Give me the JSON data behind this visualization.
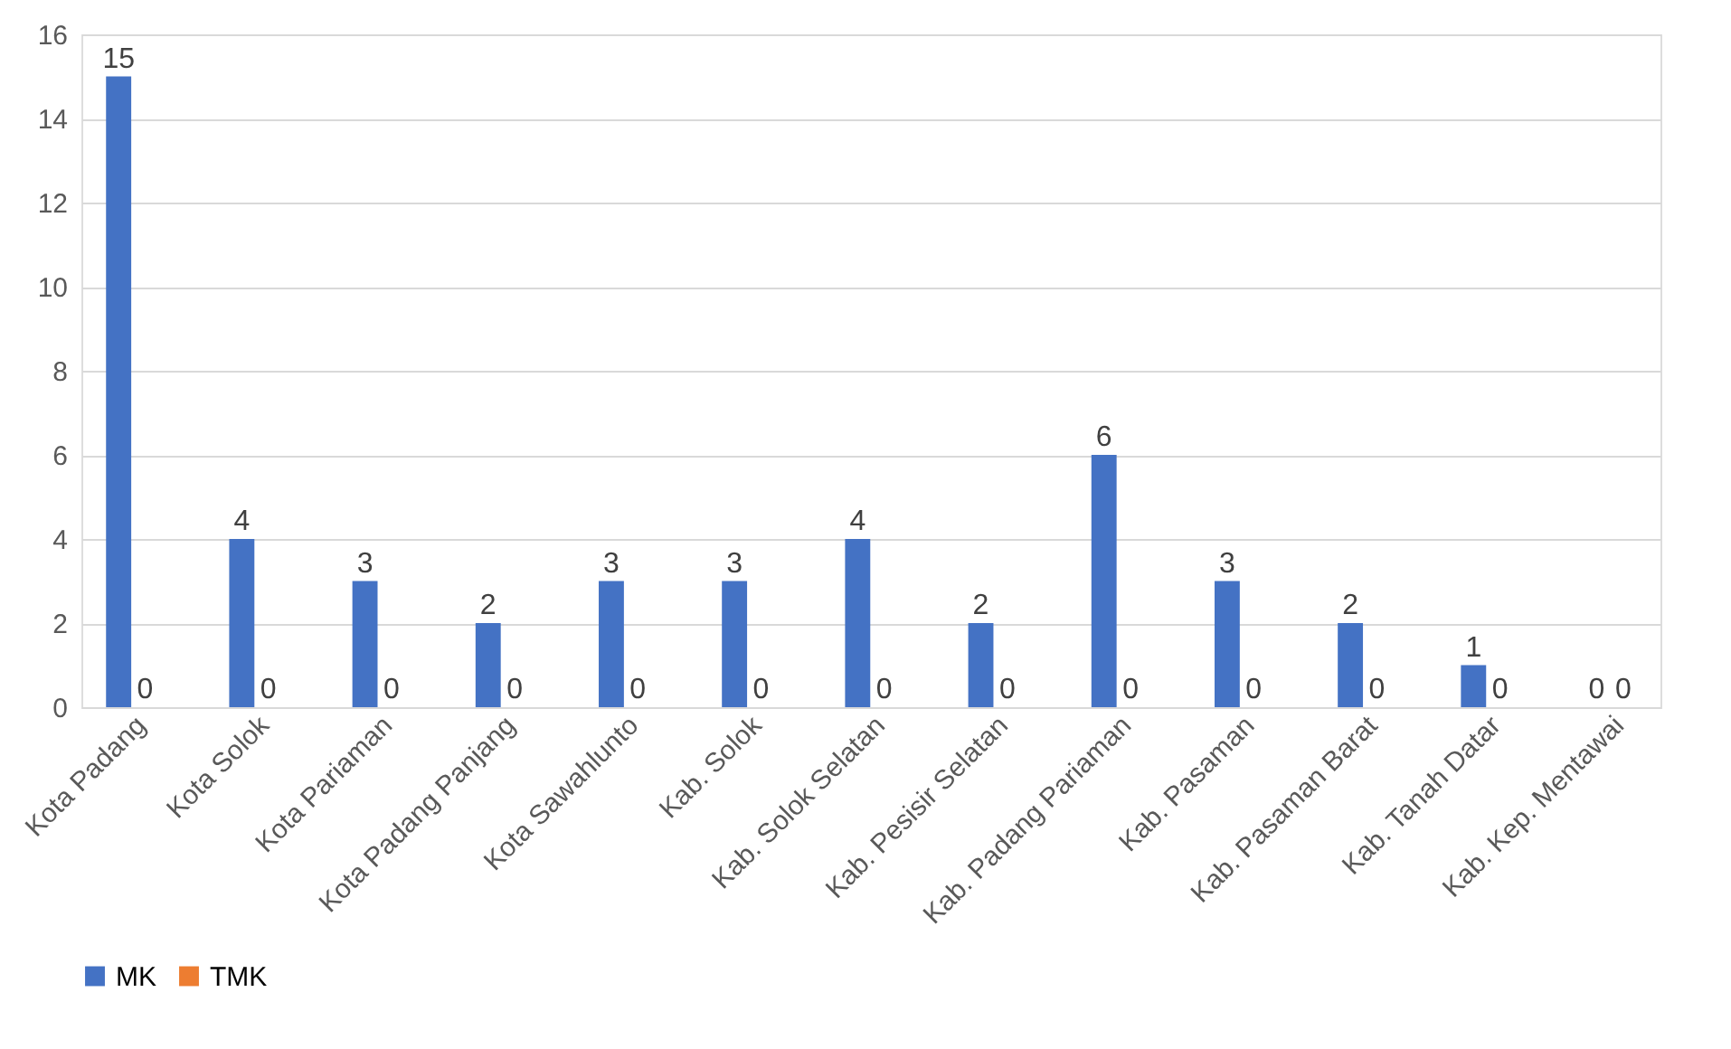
{
  "chart_data": {
    "type": "bar",
    "categories": [
      "Kota Padang",
      "Kota Solok",
      "Kota Pariaman",
      "Kota Padang Panjang",
      "Kota Sawahlunto",
      "Kab. Solok",
      "Kab. Solok Selatan",
      "Kab. Pesisir Selatan",
      "Kab. Padang Pariaman",
      "Kab. Pasaman",
      "Kab. Pasaman Barat",
      "Kab. Tanah Datar",
      "Kab. Kep. Mentawai"
    ],
    "series": [
      {
        "name": "MK",
        "color": "#4472c4",
        "values": [
          15,
          4,
          3,
          2,
          3,
          3,
          4,
          2,
          6,
          3,
          2,
          1,
          0
        ]
      },
      {
        "name": "TMK",
        "color": "#ed7d31",
        "values": [
          0,
          0,
          0,
          0,
          0,
          0,
          0,
          0,
          0,
          0,
          0,
          0,
          0
        ]
      }
    ],
    "ylim": [
      0,
      16
    ],
    "yticks": [
      0,
      2,
      4,
      6,
      8,
      10,
      12,
      14,
      16
    ],
    "grid": "y",
    "legend": "bottom",
    "data_labels": true
  }
}
